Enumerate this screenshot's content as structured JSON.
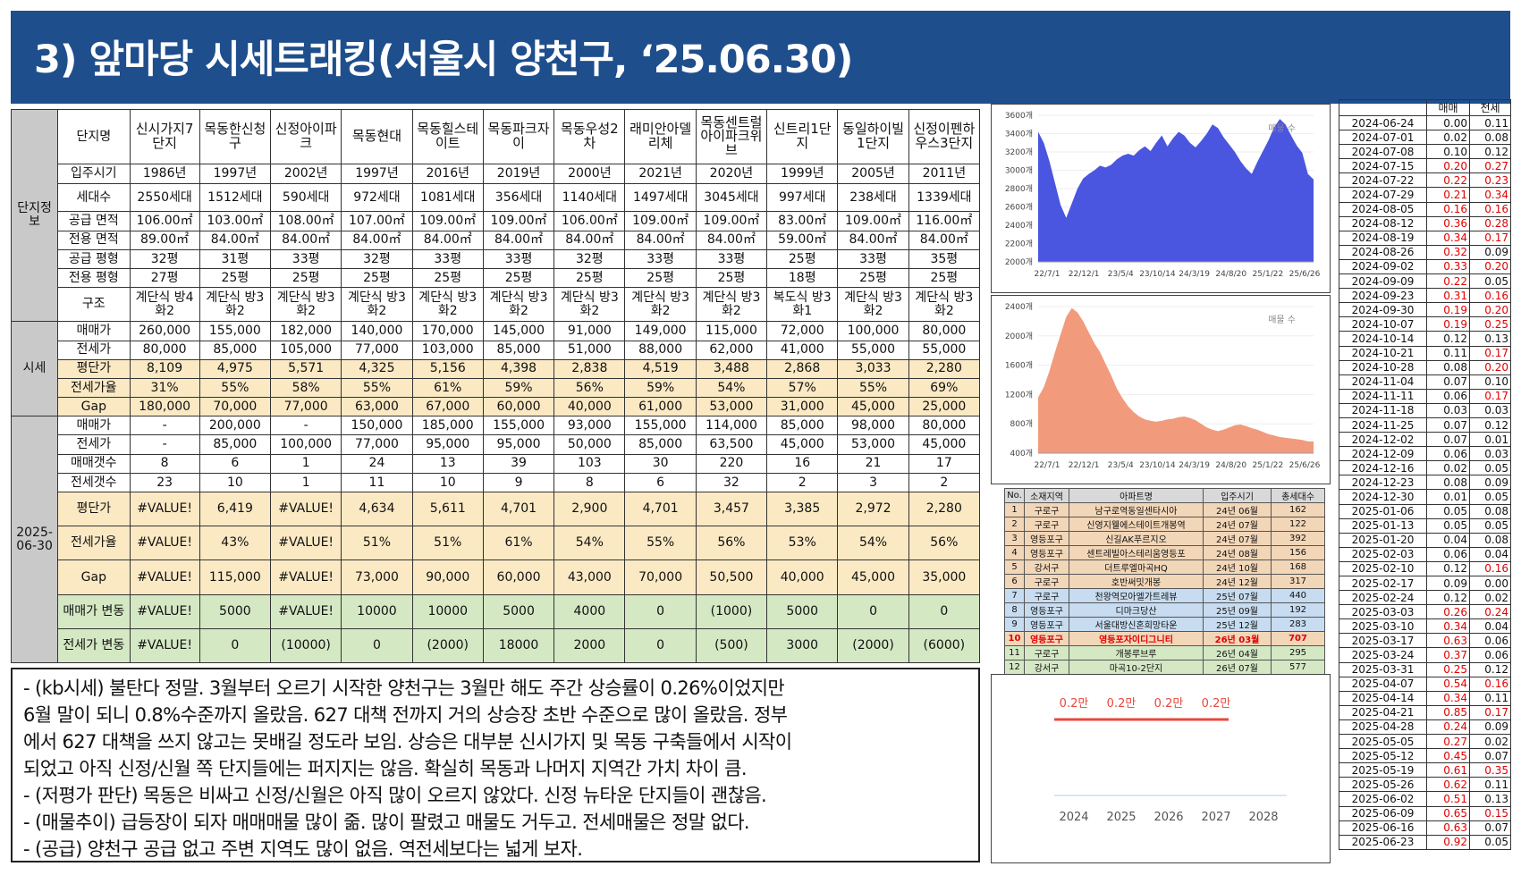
{
  "title": "3) 앞마당 시세트래킹(서울시 양천구, ‘25.06.30)",
  "table": {
    "sections": {
      "info": "단지정보",
      "price": "시세",
      "current": "2025-06-30"
    },
    "columns": [
      "신시가지7단지",
      "목동한신청구",
      "신정아이파크",
      "목동현대",
      "목동힐스테이트",
      "목동파크자이",
      "목동우성2차",
      "래미안아델리체",
      "목동센트럴아이파크위브",
      "신트리1단지",
      "동일하이빌1단지",
      "신정이펜하우스3단지"
    ],
    "info_rows": [
      {
        "label": "단지명",
        "values": []
      },
      {
        "label": "입주시기",
        "values": [
          "1986년",
          "1997년",
          "2002년",
          "1997년",
          "2016년",
          "2019년",
          "2000년",
          "2021년",
          "2020년",
          "1999년",
          "2005년",
          "2011년"
        ]
      },
      {
        "label": "세대수",
        "values": [
          "2550세대",
          "1512세대",
          "590세대",
          "972세대",
          "1081세대",
          "356세대",
          "1140세대",
          "1497세대",
          "3045세대",
          "997세대",
          "238세대",
          "1339세대"
        ]
      },
      {
        "label": "공급 면적",
        "values": [
          "106.00㎡",
          "103.00㎡",
          "108.00㎡",
          "107.00㎡",
          "109.00㎡",
          "109.00㎡",
          "106.00㎡",
          "109.00㎡",
          "109.00㎡",
          "83.00㎡",
          "109.00㎡",
          "116.00㎡"
        ]
      },
      {
        "label": "전용 면적",
        "values": [
          "89.00㎡",
          "84.00㎡",
          "84.00㎡",
          "84.00㎡",
          "84.00㎡",
          "84.00㎡",
          "84.00㎡",
          "84.00㎡",
          "84.00㎡",
          "59.00㎡",
          "84.00㎡",
          "84.00㎡"
        ]
      },
      {
        "label": "공급 평형",
        "values": [
          "32평",
          "31평",
          "33평",
          "32평",
          "33평",
          "33평",
          "32평",
          "33평",
          "33평",
          "25평",
          "33평",
          "35평"
        ]
      },
      {
        "label": "전용 평형",
        "values": [
          "27평",
          "25평",
          "25평",
          "25평",
          "25평",
          "25평",
          "25평",
          "25평",
          "25평",
          "18평",
          "25평",
          "25평"
        ]
      },
      {
        "label": "구조",
        "values": [
          "계단식 방4 화2",
          "계단식 방3 화2",
          "계단식 방3 화2",
          "계단식 방3 화2",
          "계단식 방3 화2",
          "계단식 방3 화2",
          "계단식 방3 화2",
          "계단식 방3 화2",
          "계단식 방3 화2",
          "복도식 방3 화1",
          "계단식 방3 화2",
          "계단식 방3 화2"
        ]
      }
    ],
    "price_rows": [
      {
        "label": "매매가",
        "values": [
          "260,000",
          "155,000",
          "182,000",
          "140,000",
          "170,000",
          "145,000",
          "91,000",
          "149,000",
          "115,000",
          "72,000",
          "100,000",
          "80,000"
        ]
      },
      {
        "label": "전세가",
        "values": [
          "80,000",
          "85,000",
          "105,000",
          "77,000",
          "103,000",
          "85,000",
          "51,000",
          "88,000",
          "62,000",
          "41,000",
          "55,000",
          "55,000"
        ]
      },
      {
        "label": "평단가",
        "values": [
          "8,109",
          "4,975",
          "5,571",
          "4,325",
          "5,156",
          "4,398",
          "2,838",
          "4,519",
          "3,488",
          "2,868",
          "3,033",
          "2,280"
        ]
      },
      {
        "label": "전세가율",
        "values": [
          "31%",
          "55%",
          "58%",
          "55%",
          "61%",
          "59%",
          "56%",
          "59%",
          "54%",
          "57%",
          "55%",
          "69%"
        ]
      },
      {
        "label": "Gap",
        "values": [
          "180,000",
          "70,000",
          "77,000",
          "63,000",
          "67,000",
          "60,000",
          "40,000",
          "61,000",
          "53,000",
          "31,000",
          "45,000",
          "25,000"
        ]
      }
    ],
    "current_rows": [
      {
        "label": "매매가",
        "values": [
          "-",
          "200,000",
          "-",
          "150,000",
          "185,000",
          "155,000",
          "93,000",
          "155,000",
          "114,000",
          "85,000",
          "98,000",
          "80,000"
        ]
      },
      {
        "label": "전세가",
        "values": [
          "-",
          "85,000",
          "100,000",
          "77,000",
          "95,000",
          "95,000",
          "50,000",
          "85,000",
          "63,500",
          "45,000",
          "53,000",
          "45,000"
        ]
      },
      {
        "label": "매매갯수",
        "values": [
          "8",
          "6",
          "1",
          "24",
          "13",
          "39",
          "103",
          "30",
          "220",
          "16",
          "21",
          "17"
        ]
      },
      {
        "label": "전세갯수",
        "values": [
          "23",
          "10",
          "1",
          "11",
          "10",
          "9",
          "8",
          "6",
          "32",
          "2",
          "3",
          "2"
        ]
      },
      {
        "label": "평단가",
        "values": [
          "#VALUE!",
          "6,419",
          "#VALUE!",
          "4,634",
          "5,611",
          "4,701",
          "2,900",
          "4,701",
          "3,457",
          "3,385",
          "2,972",
          "2,280"
        ]
      },
      {
        "label": "전세가율",
        "values": [
          "#VALUE!",
          "43%",
          "#VALUE!",
          "51%",
          "51%",
          "61%",
          "54%",
          "55%",
          "56%",
          "53%",
          "54%",
          "56%"
        ]
      },
      {
        "label": "Gap",
        "values": [
          "#VALUE!",
          "115,000",
          "#VALUE!",
          "73,000",
          "90,000",
          "60,000",
          "43,000",
          "70,000",
          "50,500",
          "40,000",
          "45,000",
          "35,000"
        ]
      },
      {
        "label": "매매가 변동",
        "values": [
          "#VALUE!",
          "5000",
          "#VALUE!",
          "10000",
          "10000",
          "5000",
          "4000",
          "0",
          "(1000)",
          "5000",
          "0",
          "0"
        ]
      },
      {
        "label": "전세가 변동",
        "values": [
          "#VALUE!",
          "0",
          "(10000)",
          "0",
          "(2000)",
          "18000",
          "2000",
          "0",
          "(500)",
          "3000",
          "(2000)",
          "(6000)"
        ]
      }
    ]
  },
  "comments": [
    "- (kb시세) 불탄다 정말. 3월부터 오르기 시작한 양천구는 3월만 해도 주간 상승률이 0.26%이었지만",
    "6월 말이 되니 0.8%수준까지 올랐음. 627 대책 전까지 거의 상승장 초반 수준으로 많이 올랐음. 정부",
    "에서 627 대책을 쓰지 않고는 못배길 정도라 보임. 상승은 대부분 신시가지 및 목동 구축들에서 시작이",
    "되었고 아직 신정/신월 쪽 단지들에는 퍼지지는 않음. 확실히 목동과 나머지 지역간 가치 차이 큼.",
    "- (저평가 판단) 목동은 비싸고 신정/신월은 아직 많이 오르지 않았다. 신정 뉴타운 단지들이 괜찮음.",
    "- (매물추이) 급등장이 되자 매매매물 많이 줆. 많이 팔렸고 매물도 거두고. 전세매물은 정말 없다.",
    "- (공급) 양천구 공급 없고 주변 지역도 많이 없음. 역전세보다는 넓게 보자."
  ],
  "chart_data": [
    {
      "type": "area",
      "title": "",
      "legend": "매물 수",
      "color": "#4a55e0",
      "yticks": [
        "2000개",
        "2200개",
        "2400개",
        "2600개",
        "2800개",
        "3000개",
        "3200개",
        "3400개",
        "3600개"
      ],
      "ylim": [
        2000,
        3600
      ],
      "xticks": [
        "22/7/1",
        "22/12/1",
        "23/5/4",
        "23/10/14",
        "24/3/19",
        "24/8/20",
        "25/1/22",
        "25/6/26"
      ],
      "y": [
        3420,
        3300,
        3100,
        2860,
        2620,
        2480,
        2640,
        2800,
        2910,
        2960,
        3000,
        3050,
        3030,
        3060,
        3120,
        3160,
        3180,
        3160,
        3220,
        3260,
        3210,
        3300,
        3380,
        3260,
        3350,
        3420,
        3380,
        3300,
        3250,
        3320,
        3400,
        3500,
        3460,
        3360,
        3280,
        3200,
        3100,
        3020,
        2960,
        3090,
        3210,
        3330,
        3470,
        3560,
        3500,
        3380,
        3270,
        3190,
        2960,
        2900
      ]
    },
    {
      "type": "area",
      "title": "",
      "legend": "매물 수",
      "color": "#f29a7c",
      "yticks": [
        "400개",
        "800개",
        "1200개",
        "1600개",
        "2000개",
        "2400개"
      ],
      "ylim": [
        400,
        2400
      ],
      "xticks": [
        "22/7/1",
        "22/12/1",
        "23/5/4",
        "23/10/14",
        "24/3/19",
        "24/8/20",
        "25/1/22",
        "25/6/26"
      ],
      "y": [
        1160,
        1300,
        1520,
        1780,
        2020,
        2260,
        2380,
        2320,
        2200,
        2050,
        1900,
        1780,
        1620,
        1460,
        1280,
        1150,
        1040,
        960,
        900,
        860,
        840,
        830,
        840,
        860,
        870,
        890,
        900,
        880,
        850,
        800,
        750,
        720,
        700,
        720,
        750,
        780,
        790,
        770,
        740,
        720,
        690,
        660,
        640,
        620,
        610,
        600,
        590,
        580,
        560,
        560
      ]
    },
    {
      "type": "line",
      "title": "",
      "x": [
        "2024",
        "2025",
        "2026",
        "2027",
        "2028"
      ],
      "labels": [
        "0.2만",
        "0.2만",
        "0.2만",
        "0.2만"
      ],
      "color": "#e8473c"
    }
  ],
  "supply": {
    "headers": [
      "No.",
      "소재지역",
      "아파트명",
      "입주시기",
      "총세대수"
    ],
    "rows": [
      [
        "1",
        "구로구",
        "남구로역동일센타시아",
        "24년 06월",
        "162"
      ],
      [
        "2",
        "구로구",
        "신영지웰에스테이트개봉역",
        "24년 07월",
        "122"
      ],
      [
        "3",
        "영등포구",
        "신길AK푸르지오",
        "24년 07월",
        "392"
      ],
      [
        "4",
        "영등포구",
        "센트레빌아스테리움영등포",
        "24년 08월",
        "156"
      ],
      [
        "5",
        "강서구",
        "더트루엘마곡HQ",
        "24년 10월",
        "168"
      ],
      [
        "6",
        "구로구",
        "호반써밋개봉",
        "24년 12월",
        "317"
      ],
      [
        "7",
        "구로구",
        "천왕역모아엘가트레뷰",
        "25년 07월",
        "440"
      ],
      [
        "8",
        "영등포구",
        "디마크당산",
        "25년 09월",
        "192"
      ],
      [
        "9",
        "영등포구",
        "서울대방신혼희망타운",
        "25년 12월",
        "283"
      ],
      [
        "10",
        "영등포구",
        "영등포자이디그니티",
        "26년 03월",
        "707"
      ],
      [
        "11",
        "구로구",
        "개봉루브루",
        "26년 04월",
        "295"
      ],
      [
        "12",
        "강서구",
        "마곡10-2단지",
        "26년 07월",
        "577"
      ]
    ]
  },
  "weekly": {
    "headers": [
      "",
      "매매",
      "전세"
    ],
    "rows": [
      [
        "2024-06-24",
        "0.00",
        "0.11"
      ],
      [
        "2024-07-01",
        "0.02",
        "0.08"
      ],
      [
        "2024-07-08",
        "0.10",
        "0.12"
      ],
      [
        "2024-07-15",
        "0.20",
        "0.27"
      ],
      [
        "2024-07-22",
        "0.22",
        "0.23"
      ],
      [
        "2024-07-29",
        "0.21",
        "0.34"
      ],
      [
        "2024-08-05",
        "0.16",
        "0.16"
      ],
      [
        "2024-08-12",
        "0.36",
        "0.28"
      ],
      [
        "2024-08-19",
        "0.34",
        "0.17"
      ],
      [
        "2024-08-26",
        "0.32",
        "0.09"
      ],
      [
        "2024-09-02",
        "0.33",
        "0.20"
      ],
      [
        "2024-09-09",
        "0.22",
        "0.05"
      ],
      [
        "2024-09-23",
        "0.31",
        "0.16"
      ],
      [
        "2024-09-30",
        "0.19",
        "0.20"
      ],
      [
        "2024-10-07",
        "0.19",
        "0.25"
      ],
      [
        "2024-10-14",
        "0.12",
        "0.13"
      ],
      [
        "2024-10-21",
        "0.11",
        "0.17"
      ],
      [
        "2024-10-28",
        "0.08",
        "0.20"
      ],
      [
        "2024-11-04",
        "0.07",
        "0.10"
      ],
      [
        "2024-11-11",
        "0.06",
        "0.17"
      ],
      [
        "2024-11-18",
        "0.03",
        "0.03"
      ],
      [
        "2024-11-25",
        "0.07",
        "0.12"
      ],
      [
        "2024-12-02",
        "0.07",
        "0.01"
      ],
      [
        "2024-12-09",
        "0.06",
        "0.03"
      ],
      [
        "2024-12-16",
        "0.02",
        "0.05"
      ],
      [
        "2024-12-23",
        "0.08",
        "0.09"
      ],
      [
        "2024-12-30",
        "0.01",
        "0.05"
      ],
      [
        "2025-01-06",
        "0.05",
        "0.08"
      ],
      [
        "2025-01-13",
        "0.05",
        "0.05"
      ],
      [
        "2025-01-20",
        "0.04",
        "0.08"
      ],
      [
        "2025-02-03",
        "0.06",
        "0.04"
      ],
      [
        "2025-02-10",
        "0.12",
        "0.16"
      ],
      [
        "2025-02-17",
        "0.09",
        "0.00"
      ],
      [
        "2025-02-24",
        "0.12",
        "0.02"
      ],
      [
        "2025-03-03",
        "0.26",
        "0.24"
      ],
      [
        "2025-03-10",
        "0.34",
        "0.04"
      ],
      [
        "2025-03-17",
        "0.63",
        "0.06"
      ],
      [
        "2025-03-24",
        "0.37",
        "0.06"
      ],
      [
        "2025-03-31",
        "0.25",
        "0.12"
      ],
      [
        "2025-04-07",
        "0.54",
        "0.16"
      ],
      [
        "2025-04-14",
        "0.34",
        "0.11"
      ],
      [
        "2025-04-21",
        "0.85",
        "0.17"
      ],
      [
        "2025-04-28",
        "0.24",
        "0.09"
      ],
      [
        "2025-05-05",
        "0.27",
        "0.02"
      ],
      [
        "2025-05-12",
        "0.45",
        "0.07"
      ],
      [
        "2025-05-19",
        "0.61",
        "0.35"
      ],
      [
        "2025-05-26",
        "0.62",
        "0.11"
      ],
      [
        "2025-06-02",
        "0.51",
        "0.13"
      ],
      [
        "2025-06-09",
        "0.65",
        "0.15"
      ],
      [
        "2025-06-16",
        "0.63",
        "0.07"
      ],
      [
        "2025-06-23",
        "0.92",
        "0.05"
      ]
    ],
    "red_threshold": 0.15
  }
}
